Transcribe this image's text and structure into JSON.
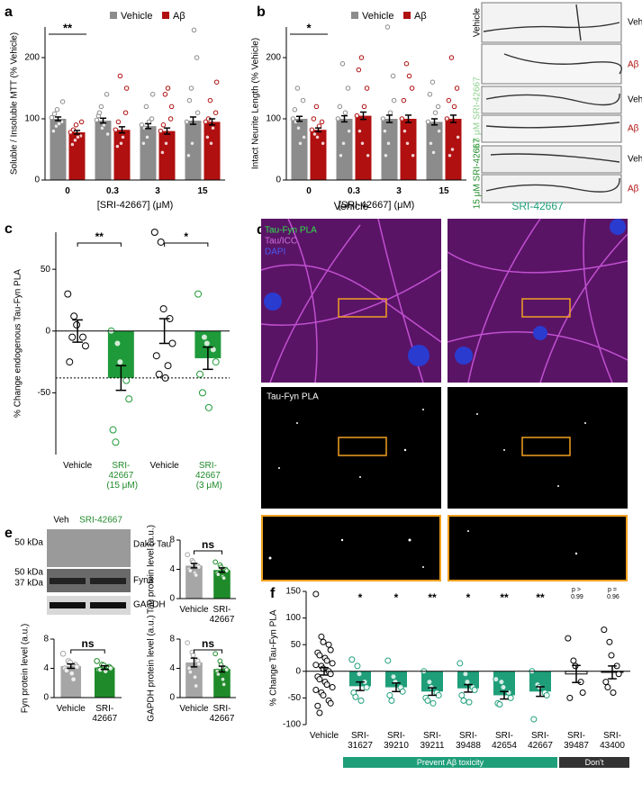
{
  "chart_data": [
    {
      "type": "bar",
      "label": "a",
      "ylabel": "Soluble / Insoluble MTT (% Vehicle)",
      "xlabel": "[SRI-42667] (μM)",
      "categories": [
        "0",
        "0.3",
        "3",
        "15"
      ],
      "ylim": [
        0,
        250
      ],
      "yticks": [
        0,
        100,
        200
      ],
      "significance": [
        "**",
        null,
        null,
        null
      ],
      "series": [
        {
          "name": "Vehicle",
          "color": "#8c8c8c",
          "values": [
            100,
            97,
            88,
            97
          ],
          "errors": [
            3,
            4,
            4,
            6
          ],
          "points": [
            [
              102,
              88,
              115,
              95,
              128,
              80,
              108,
              92
            ],
            [
              98,
              120,
              85,
              140,
              75,
              105,
              110,
              90
            ],
            [
              90,
              120,
              70,
              100,
              140,
              60,
              85,
              95
            ],
            [
              95,
              150,
              60,
              200,
              110,
              40,
              130,
              245
            ]
          ]
        },
        {
          "name": "Aβ",
          "color": "#b01010",
          "values": [
            78,
            82,
            80,
            95
          ],
          "errors": [
            3,
            5,
            5,
            5
          ],
          "points": [
            [
              78,
              65,
              90,
              72,
              95,
              58,
              82,
              70
            ],
            [
              82,
              170,
              60,
              110,
              150,
              55,
              95,
              70
            ],
            [
              80,
              140,
              60,
              100,
              120,
              45,
              90,
              150
            ],
            [
              95,
              130,
              60,
              110,
              160,
              70,
              100,
              85
            ]
          ]
        }
      ]
    },
    {
      "type": "bar",
      "label": "b",
      "ylabel": "Intact Neurite Length (% Vehicle)",
      "xlabel": "[SRI-42667] (μM)",
      "categories": [
        "0",
        "0.3",
        "3",
        "15"
      ],
      "ylim": [
        0,
        250
      ],
      "yticks": [
        0,
        100,
        200
      ],
      "significance": [
        "*",
        null,
        null,
        null
      ],
      "series": [
        {
          "name": "Vehicle",
          "color": "#8c8c8c",
          "values": [
            100,
            100,
            100,
            95
          ],
          "errors": [
            4,
            5,
            6,
            5
          ],
          "points": [
            [
              100,
              150,
              85,
              130,
              70,
              115,
              95,
              60
            ],
            [
              100,
              190,
              60,
              150,
              80,
              120,
              40,
              110
            ],
            [
              100,
              250,
              60,
              170,
              130,
              80,
              40,
              110
            ],
            [
              95,
              160,
              45,
              120,
              80,
              140,
              60,
              110
            ]
          ]
        },
        {
          "name": "Aβ",
          "color": "#b01010",
          "values": [
            82,
            105,
            100,
            100
          ],
          "errors": [
            3,
            6,
            6,
            6
          ],
          "points": [
            [
              82,
              120,
              70,
              95,
              60,
              100,
              75,
              88
            ],
            [
              105,
              200,
              60,
              150,
              40,
              180,
              80,
              120
            ],
            [
              100,
              190,
              60,
              150,
              40,
              130,
              80,
              170
            ],
            [
              100,
              200,
              50,
              150,
              70,
              130,
              40,
              120
            ]
          ]
        }
      ]
    },
    {
      "type": "bar",
      "label": "c",
      "ylabel": "% Change endogenous Tau-Fyn PLA",
      "categories": [
        "Vehicle",
        "SRI-42667 (15 μM)",
        "Vehicle",
        "SRI-42667 (3 μM)"
      ],
      "ylim": [
        -100,
        80
      ],
      "yticks": [
        -50,
        0,
        50
      ],
      "values": [
        0,
        -38,
        0,
        -22
      ],
      "errors": [
        9,
        10,
        10,
        9
      ],
      "colors": [
        "#ffffff",
        "#1f9a3a",
        "#ffffff",
        "#1f9a3a"
      ],
      "label_colors": [
        "#000000",
        "#1f8a2a",
        "#000000",
        "#1f8a2a"
      ],
      "points": [
        [
          30,
          12,
          5,
          -5,
          -12,
          -25,
          -5
        ],
        [
          0,
          -10,
          -25,
          -40,
          -55,
          -80,
          -90
        ],
        [
          80,
          72,
          18,
          10,
          -10,
          -20,
          -35,
          -38,
          -28
        ],
        [
          30,
          -5,
          -10,
          -15,
          -25,
          -35,
          -50,
          -62
        ]
      ],
      "hline": -38,
      "brackets": [
        {
          "text": "**",
          "from": 0,
          "to": 1
        },
        {
          "text": "*",
          "from": 2,
          "to": 3
        }
      ]
    },
    {
      "type": "bar",
      "ylabel": "Tau protein level (a.u.)",
      "categories": [
        "Vehicle",
        "SRI-42667"
      ],
      "ylim": [
        0,
        8
      ],
      "yticks": [
        0,
        4,
        8
      ],
      "values": [
        4.5,
        3.9
      ],
      "errors": [
        0.3,
        0.3
      ],
      "colors": [
        "#a6a6a6",
        "#1f8a2a"
      ],
      "points": [
        [
          6,
          5.2,
          5,
          4.5,
          4.3,
          4,
          3.8,
          3.5,
          3.2
        ],
        [
          5,
          4.6,
          4.3,
          4,
          3.8,
          3.5,
          3.3,
          3,
          2.8
        ]
      ],
      "brackets": [
        {
          "text": "ns",
          "from": 0,
          "to": 1
        }
      ]
    },
    {
      "type": "bar",
      "ylabel": "Fyn protein level (a.u.)",
      "categories": [
        "Vehicle",
        "SRI-42667"
      ],
      "ylim": [
        0,
        8
      ],
      "yticks": [
        0,
        4,
        8
      ],
      "values": [
        4.3,
        4.1
      ],
      "errors": [
        0.3,
        0.25
      ],
      "colors": [
        "#a6a6a6",
        "#1f8a2a"
      ],
      "points": [
        [
          6,
          5,
          4.8,
          4.5,
          4.2,
          4,
          3.7,
          3.3,
          2.5
        ],
        [
          5,
          4.5,
          4.4,
          4.2,
          4,
          3.8,
          3.8,
          3.6
        ]
      ],
      "brackets": [
        {
          "text": "ns",
          "from": 0,
          "to": 1
        }
      ]
    },
    {
      "type": "bar",
      "ylabel": "GAPDH protein level (a.u.)",
      "categories": [
        "Vehicle",
        "SRI-42667"
      ],
      "ylim": [
        0,
        8
      ],
      "yticks": [
        0,
        4,
        8
      ],
      "values": [
        4.8,
        3.9
      ],
      "errors": [
        0.6,
        0.4
      ],
      "colors": [
        "#a6a6a6",
        "#1f8a2a"
      ],
      "points": [
        [
          7.5,
          6.2,
          5.8,
          5,
          4.6,
          4,
          3.5,
          2.8,
          1.6
        ],
        [
          6,
          5,
          4.5,
          4,
          3.8,
          3.6,
          3.2,
          2.5,
          1.8
        ]
      ],
      "brackets": [
        {
          "text": "ns",
          "from": 0,
          "to": 1
        }
      ]
    },
    {
      "type": "bar",
      "label": "f",
      "ylabel": "% Change Tau-Fyn PLA",
      "categories": [
        "Vehicle",
        "SRI-31627",
        "SRI-39210",
        "SRI-39211",
        "SRI-39488",
        "SRI-42654",
        "SRI-42667",
        "SRI-39487",
        "SRI-43400"
      ],
      "ylim": [
        -100,
        150
      ],
      "yticks": [
        -100,
        -50,
        0,
        50,
        100,
        150
      ],
      "values": [
        0,
        -28,
        -30,
        -38,
        -32,
        -45,
        -38,
        -5,
        -2
      ],
      "errors": [
        7,
        8,
        8,
        7,
        7,
        7,
        9,
        16,
        12
      ],
      "colors": [
        "#ffffff",
        "#1f9e7a",
        "#1f9e7a",
        "#1f9e7a",
        "#1f9e7a",
        "#1f9e7a",
        "#1f9e7a",
        "#ffffff",
        "#ffffff"
      ],
      "points": [
        [
          145,
          65,
          55,
          50,
          40,
          35,
          30,
          25,
          20,
          15,
          12,
          10,
          5,
          0,
          -5,
          -10,
          -15,
          -20,
          -25,
          -30,
          -35,
          -40,
          -45,
          -55,
          -60,
          -65,
          -78
        ],
        [
          22,
          10,
          -5,
          -20,
          -30,
          -40,
          -48,
          -55
        ],
        [
          20,
          -10,
          -20,
          -30,
          -38,
          -45,
          -55
        ],
        [
          0,
          -20,
          -30,
          -40,
          -45,
          -50,
          -55,
          -60
        ],
        [
          15,
          -5,
          -20,
          -30,
          -35,
          -45,
          -55,
          -58
        ],
        [
          -15,
          -20,
          -30,
          -40,
          -50,
          -60,
          -62
        ],
        [
          0,
          -25,
          -30,
          -40,
          -45,
          -90
        ],
        [
          62,
          20,
          10,
          -20,
          -40,
          -50
        ],
        [
          78,
          55,
          30,
          10,
          -5,
          -20,
          -30,
          -40
        ]
      ],
      "significance": [
        null,
        "*",
        "*",
        "**",
        "*",
        "**",
        "**",
        "p > 0.99",
        "p = 0.96"
      ],
      "groups": [
        {
          "text": "Prevent Aβ toxicity",
          "from": 1,
          "to": 6,
          "color": "#1f9e7a"
        },
        {
          "text": "Don't",
          "from": 7,
          "to": 8,
          "color": "#333333"
        }
      ]
    }
  ],
  "micrographs_b": {
    "rows": [
      "Vehicle",
      "0.3 μM SRI-42667",
      "15 μM SRI-42667"
    ],
    "veh": "Veh",
    "abeta": "Aβ"
  },
  "panel_d": {
    "label": "d",
    "columns": [
      "Vehicle",
      "SRI-42667"
    ],
    "channels": [
      "Tau-Fyn PLA",
      "Tau/ICC",
      "DAPI"
    ],
    "lower_label": "Tau-Fyn PLA"
  },
  "panel_e": {
    "label": "e",
    "lanes": [
      "Veh",
      "SRI-42667"
    ],
    "markers": [
      "50 kDa",
      "50 kDa",
      "37 kDa"
    ],
    "bands": [
      "Dako Tau",
      "Fyn3",
      "GAPDH"
    ]
  }
}
